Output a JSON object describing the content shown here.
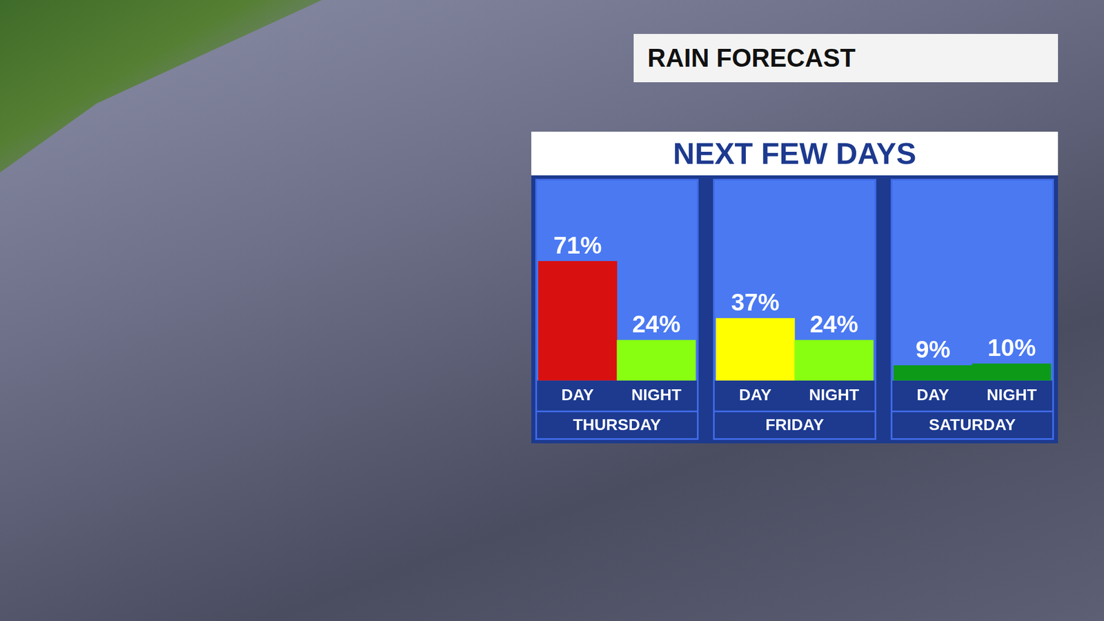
{
  "header": {
    "label": "RAIN FORECAST",
    "title": "NEXT FEW DAYS"
  },
  "chart_data": [
    {
      "type": "bar",
      "title": "THURSDAY",
      "categories": [
        "DAY",
        "NIGHT"
      ],
      "values": [
        71,
        24
      ],
      "value_labels": [
        "71%",
        "24%"
      ],
      "colors": [
        "#d91010",
        "#88ff11"
      ],
      "ylim": [
        0,
        120
      ],
      "data_labels": true,
      "tick_labels": "x",
      "grid": false
    },
    {
      "type": "bar",
      "title": "FRIDAY",
      "categories": [
        "DAY",
        "NIGHT"
      ],
      "values": [
        37,
        24
      ],
      "value_labels": [
        "37%",
        "24%"
      ],
      "colors": [
        "#ffff00",
        "#88ff11"
      ],
      "ylim": [
        0,
        120
      ],
      "data_labels": true,
      "tick_labels": "x",
      "grid": false
    },
    {
      "type": "bar",
      "title": "SATURDAY",
      "categories": [
        "DAY",
        "NIGHT"
      ],
      "values": [
        9,
        10
      ],
      "value_labels": [
        "9%",
        "10%"
      ],
      "colors": [
        "#0c9a18",
        "#0c9a18"
      ],
      "ylim": [
        0,
        120
      ],
      "data_labels": true,
      "tick_labels": "x",
      "grid": false
    }
  ]
}
